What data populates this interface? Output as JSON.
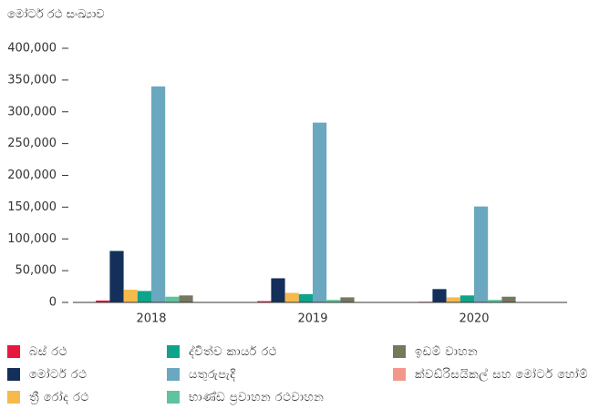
{
  "chart_data": {
    "type": "bar",
    "y_label": "මෝටර් රථ සංඛ්‍යාව",
    "categories": [
      "2018",
      "2019",
      "2020"
    ],
    "series": [
      {
        "name": "බස් රථ",
        "color": "#e8173d",
        "values": [
          3000,
          2000,
          1000
        ]
      },
      {
        "name": "මෝටර් රථ",
        "color": "#14305a",
        "values": [
          81000,
          38000,
          21000
        ]
      },
      {
        "name": "ත්‍රී රෝද රථ",
        "color": "#f5b94c",
        "values": [
          20000,
          15000,
          8000
        ]
      },
      {
        "name": "ද්විත්ව කාර්ය රථ",
        "color": "#0fa38a",
        "values": [
          18000,
          13000,
          11000
        ]
      },
      {
        "name": "යතුරුපැදි",
        "color": "#6aa8bf",
        "values": [
          340000,
          283000,
          151000
        ]
      },
      {
        "name": "භාණ්ඩ ප්‍රවාහන රථවාහන",
        "color": "#5fc39d",
        "values": [
          9000,
          4000,
          4000
        ]
      },
      {
        "name": "ඉඩම් වාහන",
        "color": "#77775f",
        "values": [
          11000,
          8000,
          9000
        ]
      },
      {
        "name": "ක්වඩ්රිසයිකල් සහ මෝටර් හෝම්",
        "color": "#f4978a",
        "values": [
          500,
          500,
          300
        ]
      }
    ],
    "ylim": [
      0,
      400000
    ],
    "yticks": [
      0,
      {
        "value": 50000,
        "label": "50,000"
      },
      {
        "value": 100000,
        "label": "100,000"
      },
      {
        "value": 150000,
        "label": "150,000"
      },
      {
        "value": 200000,
        "label": "200,000"
      },
      {
        "value": 250000,
        "label": "250,000"
      },
      {
        "value": 300000,
        "label": "300,000"
      },
      {
        "value": 350000,
        "label": "350,000"
      },
      {
        "value": 400000,
        "label": "400,000"
      }
    ],
    "grid": false
  }
}
